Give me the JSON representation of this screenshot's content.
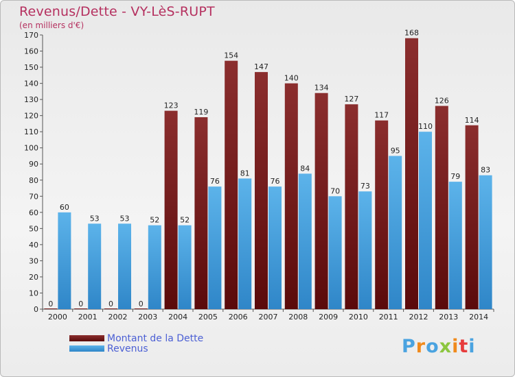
{
  "title": "Revenus/Dette - VY-LèS-RUPT",
  "subtitle": "(en milliers d'€)",
  "logo": "Proxiti",
  "colors": {
    "dette": "#7a1e1e",
    "revenus": "#4aa3e0",
    "title": "#b5305f",
    "legend_text": "#4b5fd4"
  },
  "chart_data": {
    "type": "bar",
    "categories": [
      "2000",
      "2001",
      "2002",
      "2003",
      "2004",
      "2005",
      "2006",
      "2007",
      "2008",
      "2009",
      "2010",
      "2011",
      "2012",
      "2013",
      "2014"
    ],
    "series": [
      {
        "name": "Montant de la Dette",
        "values": [
          0,
          0,
          0,
          0,
          123,
          119,
          154,
          147,
          140,
          134,
          127,
          117,
          168,
          126,
          114
        ]
      },
      {
        "name": "Revenus",
        "values": [
          60,
          53,
          53,
          52,
          52,
          76,
          81,
          76,
          84,
          70,
          73,
          95,
          110,
          79,
          83
        ]
      }
    ],
    "ylim": [
      0,
      170
    ],
    "yticks": [
      0,
      10,
      20,
      30,
      40,
      50,
      60,
      70,
      80,
      90,
      100,
      110,
      120,
      130,
      140,
      150,
      160,
      170
    ],
    "grid": false,
    "legend": "bottom-left"
  }
}
